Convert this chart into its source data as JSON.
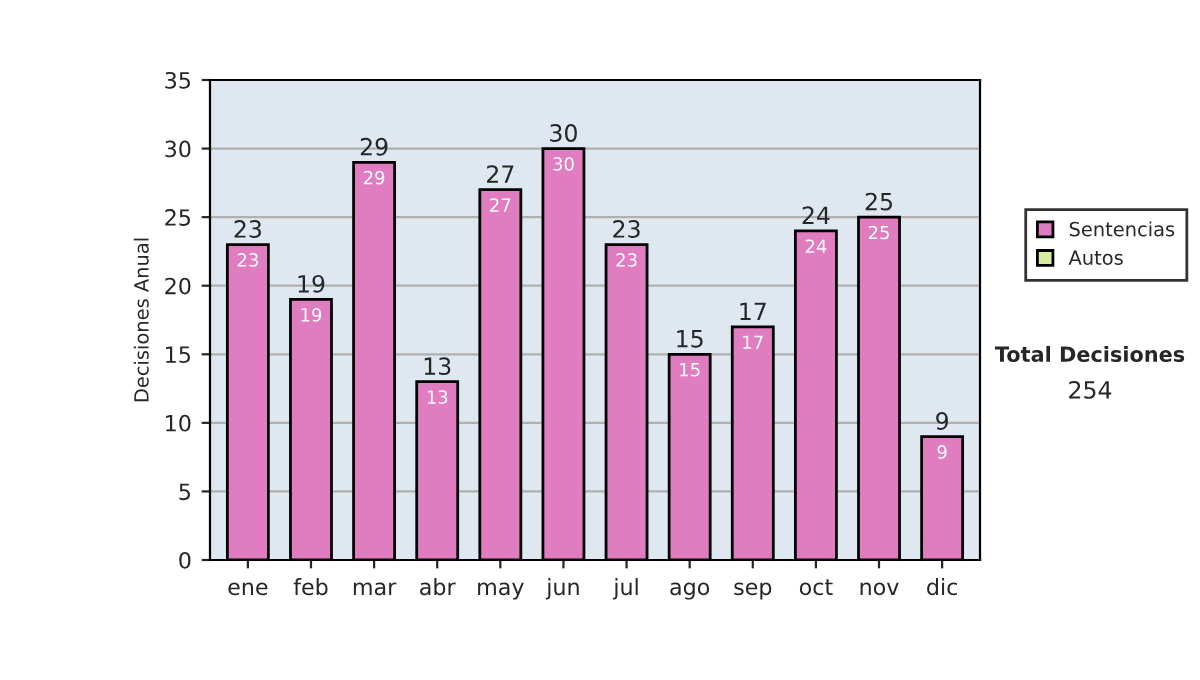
{
  "chart_data": {
    "type": "bar",
    "ylabel": "Decisiones Anual",
    "categories": [
      "ene",
      "feb",
      "mar",
      "abr",
      "may",
      "jun",
      "jul",
      "ago",
      "sep",
      "oct",
      "nov",
      "dic"
    ],
    "stacked": true,
    "series": [
      {
        "name": "Sentencias",
        "color": "#e07cc0",
        "values": [
          23,
          19,
          29,
          13,
          27,
          30,
          23,
          15,
          17,
          24,
          25,
          9
        ],
        "value_labels": [
          "23",
          "19",
          "29",
          "13",
          "27",
          "30",
          "23",
          "15",
          "17",
          "24",
          "25",
          "9"
        ]
      },
      {
        "name": "Autos",
        "color": "#d8eca0",
        "values": [
          null,
          null,
          null,
          null,
          null,
          null,
          null,
          null,
          null,
          null,
          null,
          null
        ]
      }
    ],
    "totals": [
      "23",
      "19",
      "29",
      "13",
      "27",
      "30",
      "23",
      "15",
      "17",
      "24",
      "25",
      "9"
    ],
    "ylim": [
      0,
      35
    ],
    "yticks": [
      0,
      5,
      10,
      15,
      20,
      25,
      30,
      35
    ],
    "grid": "y",
    "legend": "right",
    "annotations": [
      "Total Decisiones",
      "254"
    ]
  }
}
